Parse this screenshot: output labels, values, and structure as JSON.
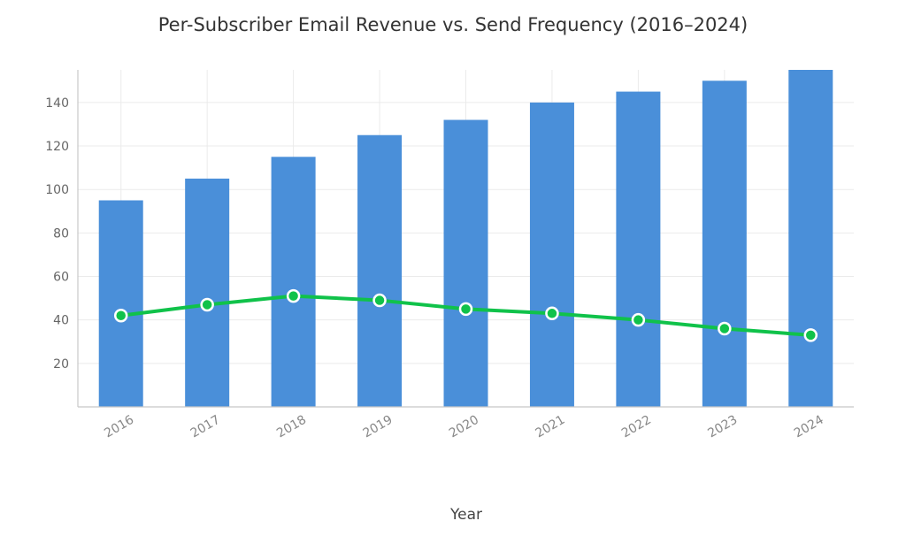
{
  "chart_data": {
    "type": "bar",
    "title": "Per-Subscriber Email Revenue vs. Send Frequency (2016–2024)",
    "xlabel": "Year",
    "ylabel": "",
    "categories": [
      "2016",
      "2017",
      "2018",
      "2019",
      "2020",
      "2021",
      "2022",
      "2023",
      "2024"
    ],
    "series": [
      {
        "type": "bar",
        "values": [
          95,
          105,
          115,
          125,
          132,
          140,
          145,
          150,
          155
        ],
        "color": "#4a8fd9"
      },
      {
        "type": "line",
        "values": [
          42,
          47,
          51,
          49,
          45,
          43,
          40,
          36,
          33
        ],
        "color": "#10c24a"
      }
    ],
    "ylim": [
      0,
      155
    ],
    "yticks": [
      20,
      40,
      60,
      80,
      100,
      120,
      140
    ],
    "grid": true,
    "legend": "none"
  }
}
